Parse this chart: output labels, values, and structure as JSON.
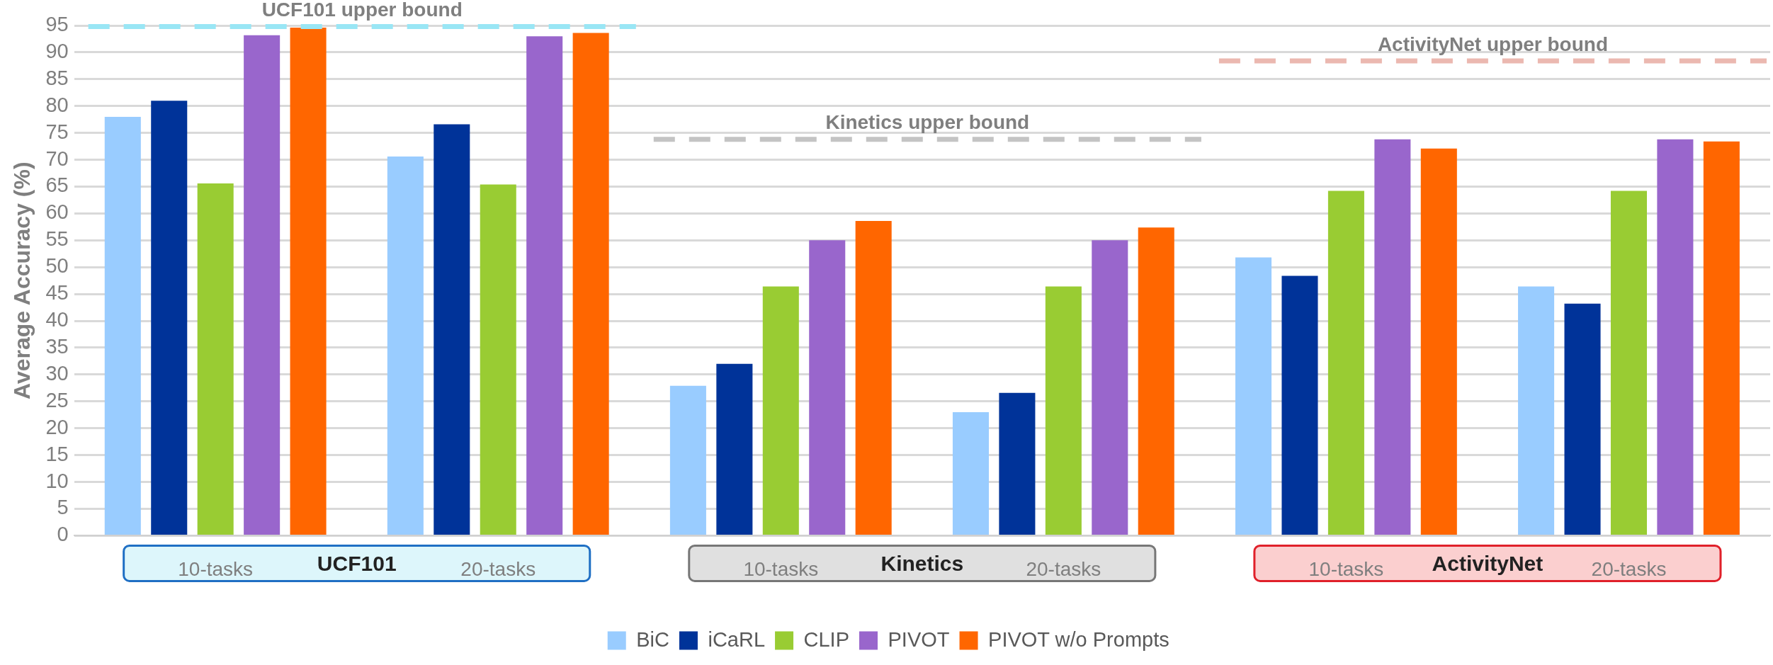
{
  "chart_data": {
    "type": "bar",
    "ylabel": "Average Accuracy (%)",
    "categories": [
      "10-tasks",
      "20-tasks",
      "10-tasks",
      "20-tasks",
      "10-tasks",
      "20-tasks"
    ],
    "series": [
      {
        "name": "BiC",
        "color": "#99ccff",
        "values": [
          78,
          70.6,
          27.9,
          23,
          51.8,
          46.4
        ]
      },
      {
        "name": "iCaRL",
        "color": "#003399",
        "values": [
          81,
          76.6,
          32,
          26.6,
          48.4,
          43.2
        ]
      },
      {
        "name": "CLIP",
        "color": "#99cc33",
        "values": [
          65.6,
          65.4,
          46.4,
          46.4,
          64.2,
          64.2
        ]
      },
      {
        "name": "PIVOT",
        "color": "#9966cc",
        "values": [
          93.2,
          93,
          55,
          55,
          73.8,
          73.8
        ]
      },
      {
        "name": "PIVOT w/o Prompts",
        "color": "#ff6600",
        "values": [
          94.6,
          93.6,
          58.6,
          57.4,
          72.1,
          73.4
        ]
      }
    ],
    "ylim": [
      0,
      95
    ],
    "yticks": [
      0,
      5,
      10,
      15,
      20,
      25,
      30,
      35,
      40,
      45,
      50,
      55,
      60,
      65,
      70,
      75,
      80,
      85,
      90,
      95
    ],
    "grid": "y",
    "legend": "bottom",
    "ref_lines": [
      {
        "axis": "y",
        "value": 94.8,
        "label": "UCF101 upper bound",
        "color": "#99e6f5",
        "line_style": "dashed"
      },
      {
        "axis": "y",
        "value": 73.8,
        "label": "Kinetics upper bound",
        "color": "#c4c4c4",
        "line_style": "dashed"
      },
      {
        "axis": "y",
        "value": 88.4,
        "label": "ActivityNet upper bound",
        "color": "#ebb8b0",
        "line_style": "dashed"
      }
    ],
    "annotations": [
      "UCF101",
      "Kinetics",
      "ActivityNet"
    ]
  }
}
